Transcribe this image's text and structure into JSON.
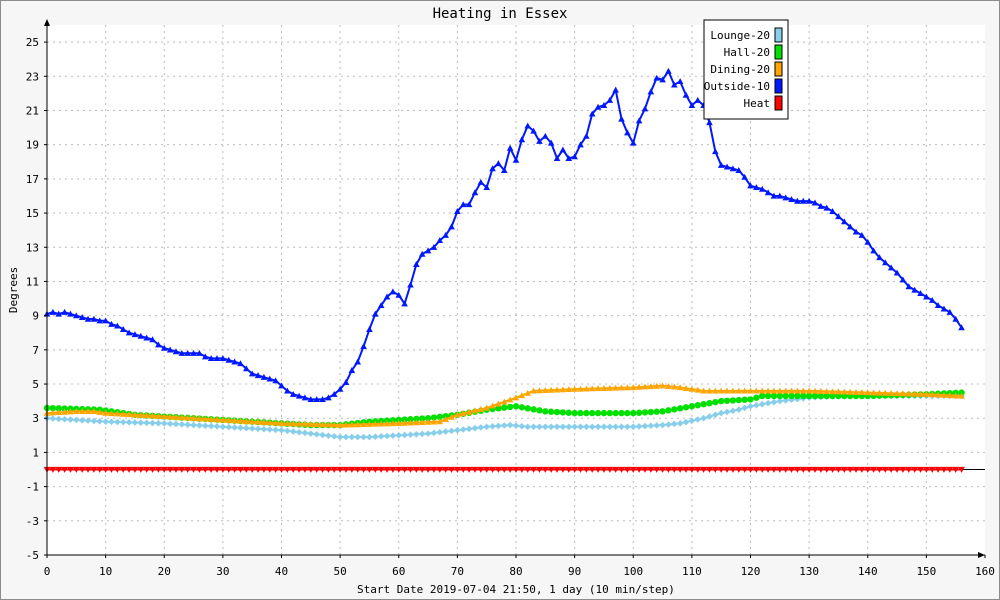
{
  "chart_data": {
    "type": "line",
    "title": "Heating in Essex",
    "xlabel": "Start Date 2019-07-04 21:50, 1 day (10 min/step)",
    "ylabel": "Degrees",
    "xlim": [
      0,
      160
    ],
    "ylim": [
      -5,
      26
    ],
    "x_ticks": [
      0,
      10,
      20,
      30,
      40,
      50,
      60,
      70,
      80,
      90,
      100,
      110,
      120,
      130,
      140,
      150,
      160
    ],
    "y_ticks": [
      -5,
      -3,
      -1,
      1,
      3,
      5,
      7,
      9,
      11,
      13,
      15,
      17,
      19,
      21,
      23,
      25
    ],
    "grid": true,
    "legend_position": "top-right",
    "series": [
      {
        "name": "Lounge-20",
        "color": "#87ceeb",
        "marker": "diamond",
        "points": [
          [
            0,
            3.0
          ],
          [
            10,
            2.8
          ],
          [
            20,
            2.7
          ],
          [
            30,
            2.5
          ],
          [
            40,
            2.3
          ],
          [
            45,
            2.1
          ],
          [
            50,
            1.9
          ],
          [
            55,
            1.9
          ],
          [
            60,
            2.0
          ],
          [
            65,
            2.1
          ],
          [
            70,
            2.3
          ],
          [
            75,
            2.5
          ],
          [
            79,
            2.6
          ],
          [
            82,
            2.5
          ],
          [
            90,
            2.5
          ],
          [
            100,
            2.5
          ],
          [
            105,
            2.6
          ],
          [
            108,
            2.7
          ],
          [
            112,
            3.0
          ],
          [
            115,
            3.3
          ],
          [
            118,
            3.5
          ],
          [
            120,
            3.7
          ],
          [
            125,
            4.0
          ],
          [
            130,
            4.2
          ],
          [
            135,
            4.3
          ],
          [
            140,
            4.3
          ],
          [
            145,
            4.3
          ],
          [
            150,
            4.3
          ],
          [
            156,
            4.3
          ]
        ]
      },
      {
        "name": "Hall-20",
        "color": "#00e000",
        "marker": "circle",
        "points": [
          [
            0,
            3.6
          ],
          [
            9,
            3.5
          ],
          [
            15,
            3.2
          ],
          [
            20,
            3.1
          ],
          [
            30,
            2.9
          ],
          [
            40,
            2.7
          ],
          [
            45,
            2.6
          ],
          [
            50,
            2.6
          ],
          [
            55,
            2.8
          ],
          [
            60,
            2.9
          ],
          [
            65,
            3.0
          ],
          [
            70,
            3.2
          ],
          [
            75,
            3.5
          ],
          [
            80,
            3.7
          ],
          [
            85,
            3.4
          ],
          [
            90,
            3.3
          ],
          [
            100,
            3.3
          ],
          [
            105,
            3.4
          ],
          [
            110,
            3.7
          ],
          [
            115,
            4.0
          ],
          [
            120,
            4.1
          ],
          [
            122,
            4.3
          ],
          [
            130,
            4.3
          ],
          [
            140,
            4.3
          ],
          [
            150,
            4.4
          ],
          [
            156,
            4.5
          ]
        ]
      },
      {
        "name": "Dining-20",
        "color": "#ffa500",
        "marker": "triangle-up",
        "points": [
          [
            0,
            3.3
          ],
          [
            5,
            3.4
          ],
          [
            8,
            3.4
          ],
          [
            10,
            3.3
          ],
          [
            20,
            3.1
          ],
          [
            30,
            2.9
          ],
          [
            40,
            2.7
          ],
          [
            50,
            2.6
          ],
          [
            60,
            2.7
          ],
          [
            67,
            2.8
          ],
          [
            70,
            3.2
          ],
          [
            75,
            3.6
          ],
          [
            80,
            4.2
          ],
          [
            83,
            4.6
          ],
          [
            90,
            4.7
          ],
          [
            100,
            4.8
          ],
          [
            105,
            4.9
          ],
          [
            108,
            4.8
          ],
          [
            112,
            4.6
          ],
          [
            120,
            4.6
          ],
          [
            130,
            4.6
          ],
          [
            140,
            4.5
          ],
          [
            150,
            4.4
          ],
          [
            156,
            4.3
          ]
        ]
      },
      {
        "name": "Outside-10",
        "color": "#0018ff",
        "marker": "triangle-up",
        "points": [
          [
            0,
            9.1
          ],
          [
            1,
            9.2
          ],
          [
            2,
            9.1
          ],
          [
            3,
            9.2
          ],
          [
            4,
            9.1
          ],
          [
            5,
            9.0
          ],
          [
            6,
            8.9
          ],
          [
            7,
            8.8
          ],
          [
            8,
            8.8
          ],
          [
            9,
            8.7
          ],
          [
            10,
            8.7
          ],
          [
            11,
            8.5
          ],
          [
            12,
            8.4
          ],
          [
            13,
            8.2
          ],
          [
            14,
            8.0
          ],
          [
            15,
            7.9
          ],
          [
            16,
            7.8
          ],
          [
            17,
            7.7
          ],
          [
            18,
            7.6
          ],
          [
            19,
            7.3
          ],
          [
            20,
            7.1
          ],
          [
            21,
            7.0
          ],
          [
            22,
            6.9
          ],
          [
            23,
            6.8
          ],
          [
            24,
            6.8
          ],
          [
            25,
            6.8
          ],
          [
            26,
            6.8
          ],
          [
            27,
            6.6
          ],
          [
            28,
            6.5
          ],
          [
            29,
            6.5
          ],
          [
            30,
            6.5
          ],
          [
            31,
            6.4
          ],
          [
            32,
            6.3
          ],
          [
            33,
            6.2
          ],
          [
            34,
            5.9
          ],
          [
            35,
            5.6
          ],
          [
            36,
            5.5
          ],
          [
            37,
            5.4
          ],
          [
            38,
            5.3
          ],
          [
            39,
            5.2
          ],
          [
            40,
            4.9
          ],
          [
            41,
            4.6
          ],
          [
            42,
            4.4
          ],
          [
            43,
            4.3
          ],
          [
            44,
            4.2
          ],
          [
            45,
            4.1
          ],
          [
            46,
            4.1
          ],
          [
            47,
            4.1
          ],
          [
            48,
            4.2
          ],
          [
            49,
            4.4
          ],
          [
            50,
            4.7
          ],
          [
            51,
            5.1
          ],
          [
            52,
            5.8
          ],
          [
            53,
            6.3
          ],
          [
            54,
            7.2
          ],
          [
            55,
            8.2
          ],
          [
            56,
            9.1
          ],
          [
            57,
            9.6
          ],
          [
            58,
            10.1
          ],
          [
            59,
            10.4
          ],
          [
            60,
            10.2
          ],
          [
            61,
            9.7
          ],
          [
            62,
            10.8
          ],
          [
            63,
            12.0
          ],
          [
            64,
            12.6
          ],
          [
            65,
            12.8
          ],
          [
            66,
            13.0
          ],
          [
            67,
            13.4
          ],
          [
            68,
            13.7
          ],
          [
            69,
            14.2
          ],
          [
            70,
            15.1
          ],
          [
            71,
            15.5
          ],
          [
            72,
            15.5
          ],
          [
            73,
            16.2
          ],
          [
            74,
            16.8
          ],
          [
            75,
            16.5
          ],
          [
            76,
            17.6
          ],
          [
            77,
            17.9
          ],
          [
            78,
            17.5
          ],
          [
            79,
            18.8
          ],
          [
            80,
            18.1
          ],
          [
            81,
            19.3
          ],
          [
            82,
            20.1
          ],
          [
            83,
            19.8
          ],
          [
            84,
            19.2
          ],
          [
            85,
            19.5
          ],
          [
            86,
            19.1
          ],
          [
            87,
            18.2
          ],
          [
            88,
            18.7
          ],
          [
            89,
            18.2
          ],
          [
            90,
            18.3
          ],
          [
            91,
            19.0
          ],
          [
            92,
            19.5
          ],
          [
            93,
            20.8
          ],
          [
            94,
            21.2
          ],
          [
            95,
            21.3
          ],
          [
            96,
            21.6
          ],
          [
            97,
            22.2
          ],
          [
            98,
            20.5
          ],
          [
            99,
            19.7
          ],
          [
            100,
            19.1
          ],
          [
            101,
            20.4
          ],
          [
            102,
            21.1
          ],
          [
            103,
            22.1
          ],
          [
            104,
            22.9
          ],
          [
            105,
            22.8
          ],
          [
            106,
            23.3
          ],
          [
            107,
            22.5
          ],
          [
            108,
            22.7
          ],
          [
            109,
            21.9
          ],
          [
            110,
            21.3
          ],
          [
            111,
            21.6
          ],
          [
            112,
            21.3
          ],
          [
            113,
            20.3
          ],
          [
            114,
            18.6
          ],
          [
            115,
            17.8
          ],
          [
            116,
            17.7
          ],
          [
            117,
            17.6
          ],
          [
            118,
            17.5
          ],
          [
            119,
            17.1
          ],
          [
            120,
            16.6
          ],
          [
            121,
            16.5
          ],
          [
            122,
            16.4
          ],
          [
            123,
            16.2
          ],
          [
            124,
            16.0
          ],
          [
            125,
            16.0
          ],
          [
            126,
            15.9
          ],
          [
            127,
            15.8
          ],
          [
            128,
            15.7
          ],
          [
            129,
            15.7
          ],
          [
            130,
            15.7
          ],
          [
            131,
            15.6
          ],
          [
            132,
            15.4
          ],
          [
            133,
            15.3
          ],
          [
            134,
            15.1
          ],
          [
            135,
            14.8
          ],
          [
            136,
            14.5
          ],
          [
            137,
            14.2
          ],
          [
            138,
            13.9
          ],
          [
            139,
            13.7
          ],
          [
            140,
            13.3
          ],
          [
            141,
            12.8
          ],
          [
            142,
            12.4
          ],
          [
            143,
            12.1
          ],
          [
            144,
            11.8
          ],
          [
            145,
            11.5
          ],
          [
            146,
            11.1
          ],
          [
            147,
            10.7
          ],
          [
            148,
            10.5
          ],
          [
            149,
            10.3
          ],
          [
            150,
            10.1
          ],
          [
            151,
            9.9
          ],
          [
            152,
            9.6
          ],
          [
            153,
            9.4
          ],
          [
            154,
            9.2
          ],
          [
            155,
            8.8
          ],
          [
            156,
            8.3
          ]
        ]
      },
      {
        "name": "Heat",
        "color": "#ff0000",
        "marker": "triangle-down",
        "points": [
          [
            0,
            0.0
          ],
          [
            156,
            0.0
          ]
        ]
      }
    ]
  }
}
